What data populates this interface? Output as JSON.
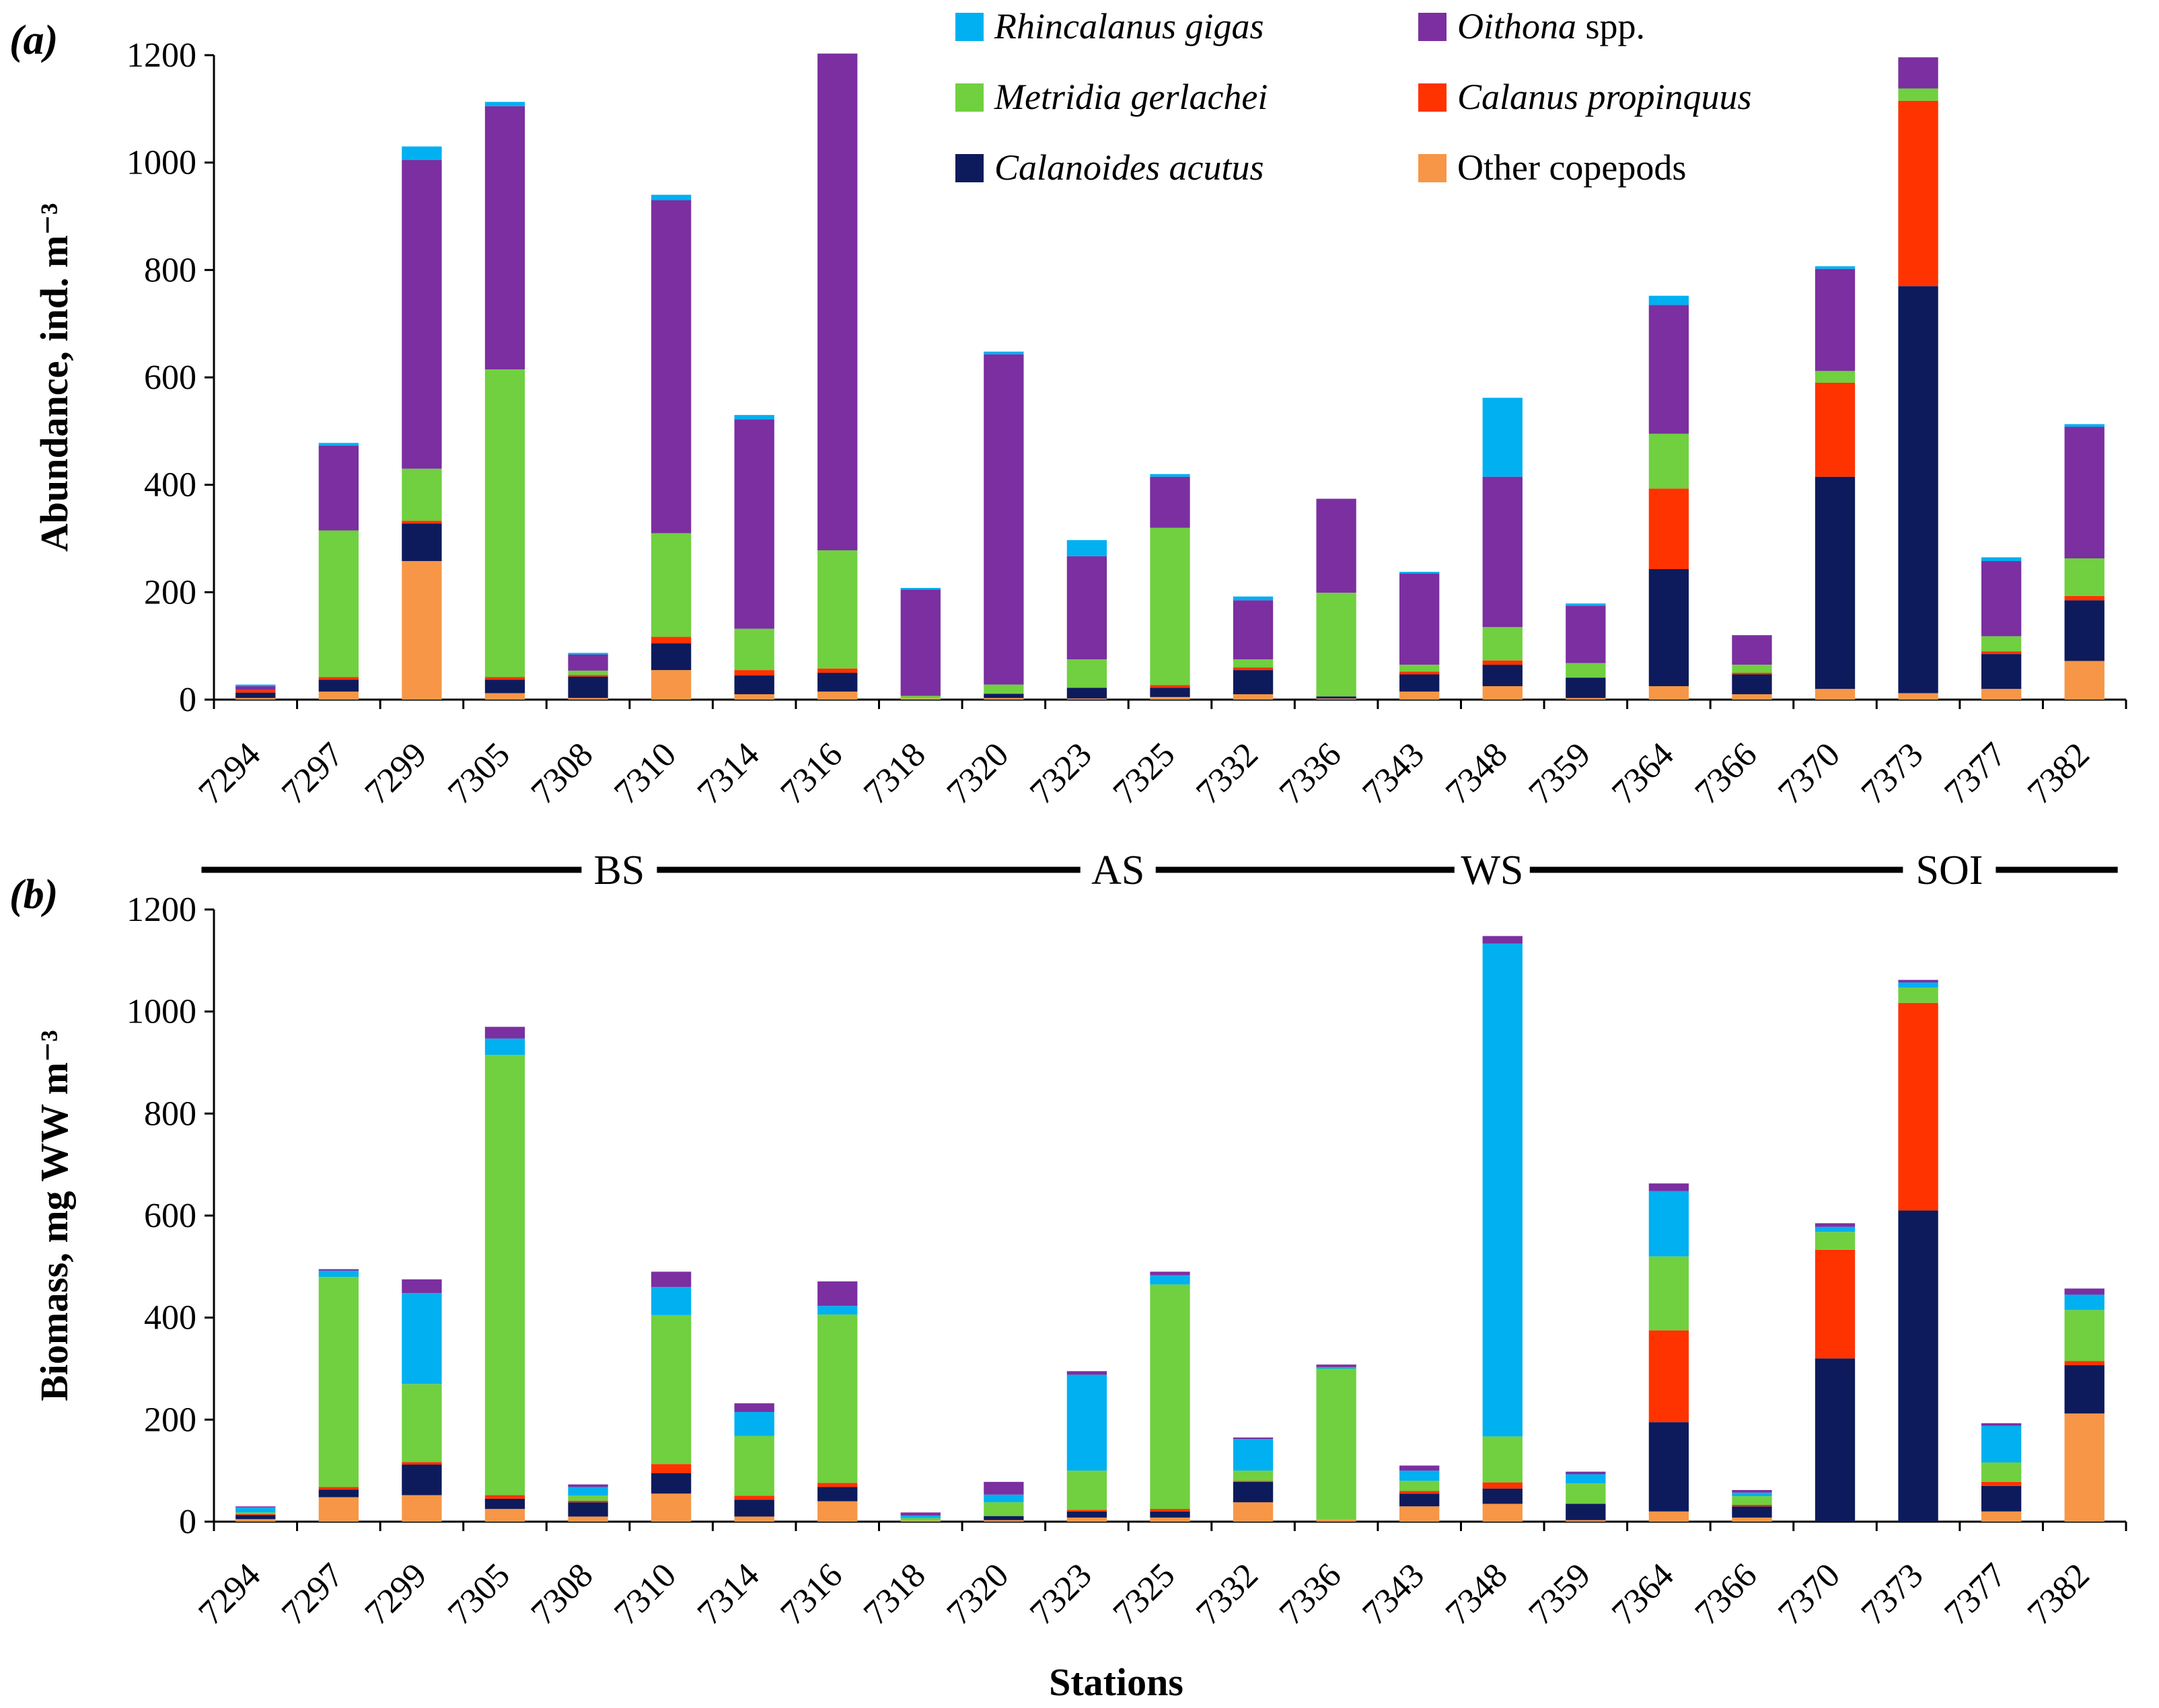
{
  "chart_data": [
    {
      "panel": "(a)",
      "type": "bar",
      "stacked": true,
      "ylabel": "Abundance, ind. m⁻³",
      "xlabel": "",
      "ylim": [
        0,
        1200
      ],
      "yticks": [
        0,
        200,
        400,
        600,
        800,
        1000,
        1200
      ],
      "categories": [
        "7294",
        "7297",
        "7299",
        "7305",
        "7308",
        "7310",
        "7314",
        "7316",
        "7318",
        "7320",
        "7323",
        "7325",
        "7332",
        "7336",
        "7343",
        "7348",
        "7359",
        "7364",
        "7366",
        "7370",
        "7373",
        "7377",
        "7382"
      ],
      "series": [
        {
          "name": "Other copepods",
          "color": "#F79646",
          "values": [
            3,
            15,
            258,
            12,
            3,
            55,
            10,
            15,
            2,
            3,
            2,
            5,
            10,
            2,
            15,
            25,
            3,
            25,
            10,
            20,
            12,
            20,
            72
          ]
        },
        {
          "name": "Calanoides acutus",
          "color": "#0D1B5C",
          "values": [
            10,
            22,
            70,
            25,
            40,
            50,
            35,
            35,
            0,
            8,
            20,
            17,
            45,
            4,
            32,
            40,
            38,
            218,
            37,
            395,
            758,
            65,
            113
          ]
        },
        {
          "name": "Calanus propinquus",
          "color": "#FF3300",
          "values": [
            5,
            5,
            5,
            5,
            3,
            12,
            10,
            8,
            0,
            0,
            0,
            5,
            5,
            0,
            5,
            8,
            0,
            150,
            3,
            175,
            345,
            5,
            8
          ]
        },
        {
          "name": "Metridia gerlachei",
          "color": "#70D040",
          "values": [
            0,
            273,
            97,
            573,
            8,
            193,
            77,
            220,
            5,
            17,
            53,
            293,
            15,
            193,
            13,
            62,
            27,
            102,
            15,
            22,
            23,
            28,
            70
          ]
        },
        {
          "name": "Oithona spp.",
          "color": "#7B2FA0",
          "values": [
            7,
            158,
            575,
            490,
            30,
            620,
            390,
            925,
            198,
            615,
            192,
            95,
            110,
            175,
            170,
            280,
            107,
            240,
            55,
            190,
            58,
            140,
            245
          ]
        },
        {
          "name": "Rhincalanus gigas",
          "color": "#00B0F0",
          "values": [
            3,
            5,
            25,
            8,
            3,
            10,
            8,
            0,
            3,
            5,
            30,
            5,
            7,
            0,
            3,
            147,
            4,
            17,
            0,
            5,
            0,
            7,
            5
          ]
        }
      ]
    },
    {
      "panel": "(b)",
      "type": "bar",
      "stacked": true,
      "ylabel": "Biomass, mg WW m⁻³",
      "xlabel": "Stations",
      "ylim": [
        0,
        1200
      ],
      "yticks": [
        0,
        200,
        400,
        600,
        800,
        1000,
        1200
      ],
      "categories": [
        "7294",
        "7297",
        "7299",
        "7305",
        "7308",
        "7310",
        "7314",
        "7316",
        "7318",
        "7320",
        "7323",
        "7325",
        "7332",
        "7336",
        "7343",
        "7348",
        "7359",
        "7364",
        "7366",
        "7370",
        "7373",
        "7377",
        "7382"
      ],
      "series": [
        {
          "name": "Other copepods",
          "color": "#F79646",
          "values": [
            5,
            48,
            52,
            25,
            10,
            55,
            10,
            40,
            2,
            3,
            8,
            8,
            38,
            5,
            30,
            35,
            3,
            20,
            8,
            0,
            0,
            20,
            212
          ]
        },
        {
          "name": "Calanoides acutus",
          "color": "#0D1B5C",
          "values": [
            8,
            15,
            60,
            20,
            28,
            40,
            33,
            28,
            0,
            8,
            12,
            12,
            40,
            0,
            25,
            30,
            32,
            175,
            22,
            320,
            610,
            50,
            95
          ]
        },
        {
          "name": "Calanus propinquus",
          "color": "#FF3300",
          "values": [
            2,
            5,
            5,
            7,
            3,
            18,
            8,
            8,
            0,
            0,
            3,
            5,
            2,
            0,
            5,
            12,
            0,
            180,
            3,
            213,
            407,
            8,
            8
          ]
        },
        {
          "name": "Metridia gerlachei",
          "color": "#70D040",
          "values": [
            3,
            412,
            153,
            863,
            10,
            292,
            117,
            330,
            5,
            27,
            77,
            440,
            20,
            295,
            20,
            90,
            40,
            145,
            17,
            35,
            30,
            38,
            100
          ]
        },
        {
          "name": "Rhincalanus gigas",
          "color": "#00B0F0",
          "values": [
            10,
            12,
            178,
            32,
            17,
            55,
            47,
            17,
            5,
            15,
            188,
            18,
            62,
            3,
            20,
            966,
            18,
            128,
            7,
            10,
            10,
            72,
            30
          ]
        },
        {
          "name": "Oithona spp.",
          "color": "#7B2FA0",
          "values": [
            2,
            3,
            27,
            23,
            5,
            30,
            17,
            48,
            6,
            25,
            7,
            7,
            3,
            5,
            10,
            15,
            5,
            15,
            5,
            7,
            5,
            5,
            12
          ]
        }
      ]
    }
  ],
  "legend": [
    {
      "name": "Rhincalanus gigas",
      "italic_part": "Rhincalanus gigas",
      "plain_part": "",
      "color": "#00B0F0"
    },
    {
      "name": "Oithona spp.",
      "italic_part": "Oithona",
      "plain_part": " spp.",
      "color": "#7B2FA0"
    },
    {
      "name": "Metridia gerlachei",
      "italic_part": "Metridia gerlachei",
      "plain_part": "",
      "color": "#70D040"
    },
    {
      "name": "Calanus propinquus",
      "italic_part": "Calanus propinquus",
      "plain_part": "",
      "color": "#FF3300"
    },
    {
      "name": "Calanoides acutus",
      "italic_part": "Calanoides acutus",
      "plain_part": "",
      "color": "#0D1B5C"
    },
    {
      "name": "Other copepods",
      "italic_part": "",
      "plain_part": "Other copepods",
      "color": "#F79646"
    }
  ],
  "regions": [
    {
      "label": "BS",
      "from": "7294",
      "to": "7320"
    },
    {
      "label": "AS",
      "from": "7323",
      "to": "7325"
    },
    {
      "label": "WS",
      "from": "7332",
      "to": "7366"
    },
    {
      "label": "SOI",
      "from": "7370",
      "to": "7382"
    }
  ]
}
